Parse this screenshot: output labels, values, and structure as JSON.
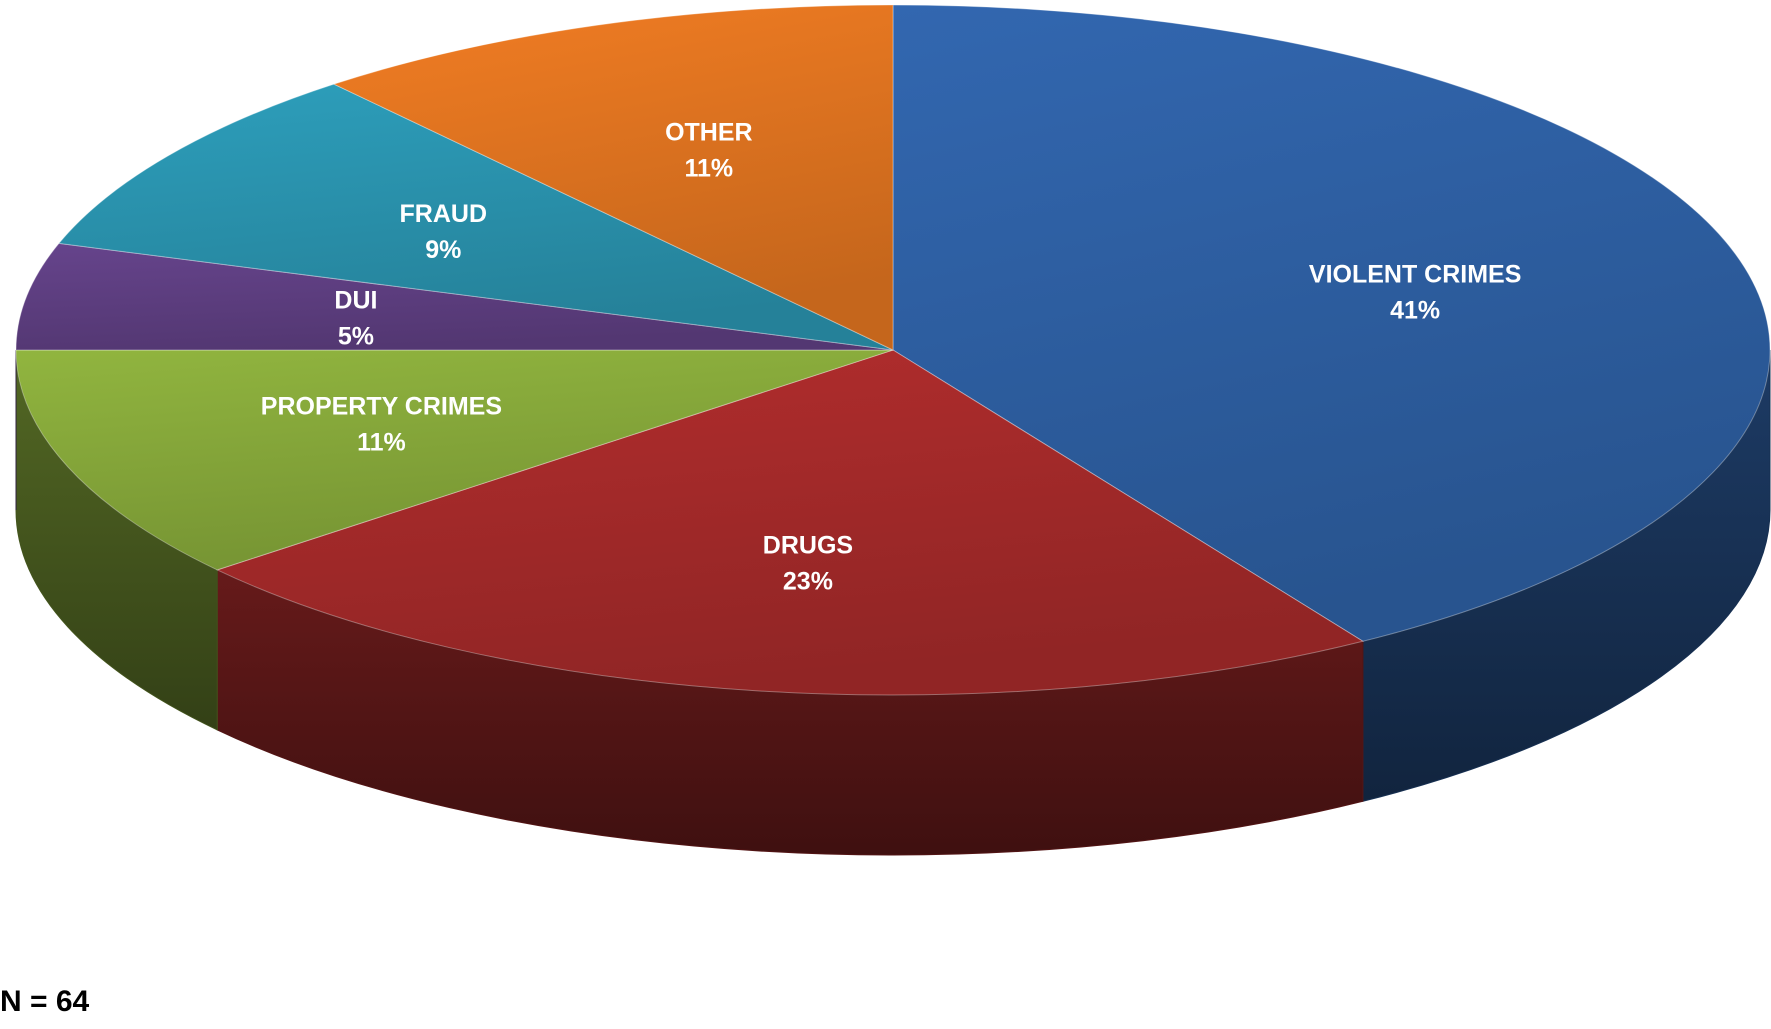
{
  "chart_data": {
    "type": "pie",
    "style": "3d-tilted",
    "legend": "none",
    "slices": [
      {
        "label": "VIOLENT CRIMES",
        "value": 41,
        "value_label": "41%",
        "color": "#2E5FA3"
      },
      {
        "label": "DRUGS",
        "value": 23,
        "value_label": "23%",
        "color": "#A52A2A"
      },
      {
        "label": "PROPERTY CRIMES",
        "value": 11,
        "value_label": "11%",
        "color": "#86A83A"
      },
      {
        "label": "DUI",
        "value": 5,
        "value_label": "5%",
        "color": "#5E3F82"
      },
      {
        "label": "FRAUD",
        "value": 9,
        "value_label": "9%",
        "color": "#2A93AE"
      },
      {
        "label": "OTHER",
        "value": 11,
        "value_label": "11%",
        "color": "#E07420"
      }
    ],
    "annotation": "N = 64"
  }
}
